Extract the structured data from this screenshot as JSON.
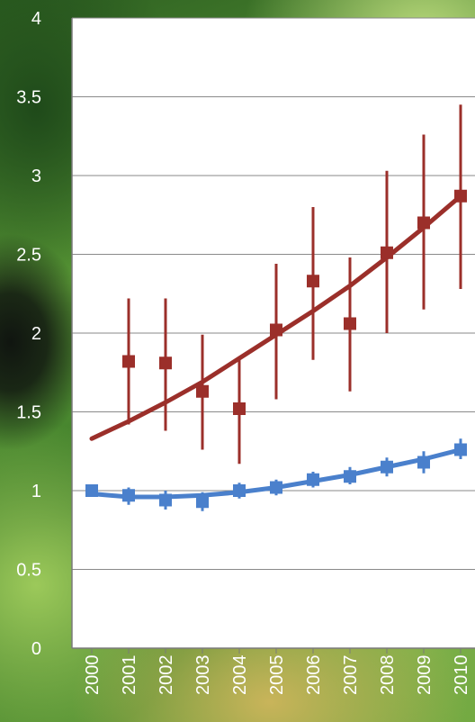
{
  "chart_data": {
    "type": "line",
    "title": "",
    "xlabel": "",
    "ylabel": "",
    "categories": [
      "2000",
      "2001",
      "2002",
      "2003",
      "2004",
      "2005",
      "2006",
      "2007",
      "2008",
      "2009",
      "2010"
    ],
    "ylim": [
      0,
      4
    ],
    "yticks": [
      "0",
      "0.5",
      "1",
      "1.5",
      "2",
      "2.5",
      "3",
      "3.5",
      "4"
    ],
    "grid": true,
    "series": [
      {
        "color": "#9b2f2a",
        "marker": "square",
        "values": [
          1.0,
          1.82,
          1.81,
          1.63,
          1.52,
          2.02,
          2.33,
          2.06,
          2.51,
          2.7,
          2.87
        ],
        "error_low": [
          null,
          1.42,
          1.38,
          1.26,
          1.17,
          1.58,
          1.83,
          1.63,
          2.0,
          2.15,
          2.28
        ],
        "error_high": [
          null,
          2.22,
          2.22,
          1.99,
          1.84,
          2.44,
          2.8,
          2.48,
          3.03,
          3.26,
          3.45
        ],
        "trend": [
          1.33,
          1.44,
          1.56,
          1.69,
          1.84,
          1.99,
          2.14,
          2.3,
          2.48,
          2.67,
          2.87
        ]
      },
      {
        "color": "#4a80cc",
        "marker": "square",
        "values": [
          1.0,
          0.97,
          0.94,
          0.93,
          1.0,
          1.02,
          1.07,
          1.09,
          1.15,
          1.18,
          1.26
        ],
        "error_low": [
          null,
          0.91,
          0.88,
          0.87,
          0.95,
          0.97,
          1.02,
          1.04,
          1.09,
          1.11,
          1.2
        ],
        "error_high": [
          null,
          1.02,
          1.0,
          0.99,
          1.05,
          1.07,
          1.12,
          1.15,
          1.21,
          1.25,
          1.33
        ],
        "trend": [
          0.98,
          0.96,
          0.96,
          0.97,
          0.99,
          1.02,
          1.06,
          1.1,
          1.15,
          1.2,
          1.26
        ]
      }
    ]
  }
}
